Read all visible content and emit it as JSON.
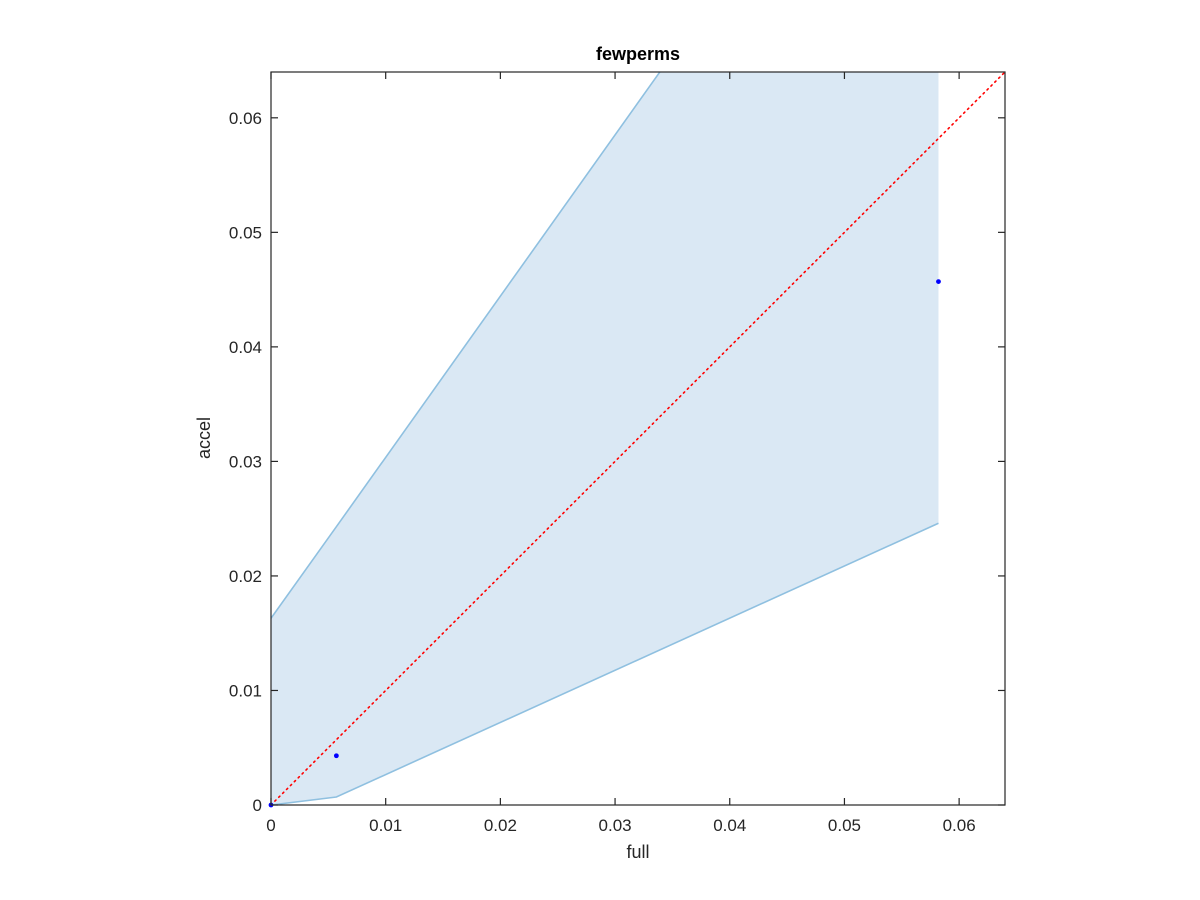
{
  "chart_data": {
    "type": "scatter",
    "title": "fewperms",
    "xlabel": "full",
    "ylabel": "accel",
    "xlim": [
      0,
      0.064
    ],
    "ylim": [
      0,
      0.064
    ],
    "xticks": [
      0,
      0.01,
      0.02,
      0.03,
      0.04,
      0.05,
      0.06
    ],
    "yticks": [
      0,
      0.01,
      0.02,
      0.03,
      0.04,
      0.05,
      0.06
    ],
    "xtick_labels": [
      "0",
      "0.01",
      "0.02",
      "0.03",
      "0.04",
      "0.05",
      "0.06"
    ],
    "ytick_labels": [
      "0",
      "0.01",
      "0.02",
      "0.03",
      "0.04",
      "0.05",
      "0.06"
    ],
    "grid": false,
    "points": {
      "x": [
        0,
        0.0057,
        0.0582
      ],
      "y": [
        0,
        0.0043,
        0.0457
      ],
      "color": "#0000ff"
    },
    "band": {
      "x": [
        0,
        0.0057,
        0.0582
      ],
      "upper": [
        0.0163,
        0.0243,
        0.0982
      ],
      "lower": [
        0,
        0.0007,
        0.0246
      ],
      "fill_color": "#dae8f4",
      "edge_color": "#8fc0e0"
    },
    "reference_line": {
      "x": [
        0,
        0.064
      ],
      "y": [
        0,
        0.064
      ],
      "color": "#ff0000",
      "style": "dotted"
    }
  }
}
